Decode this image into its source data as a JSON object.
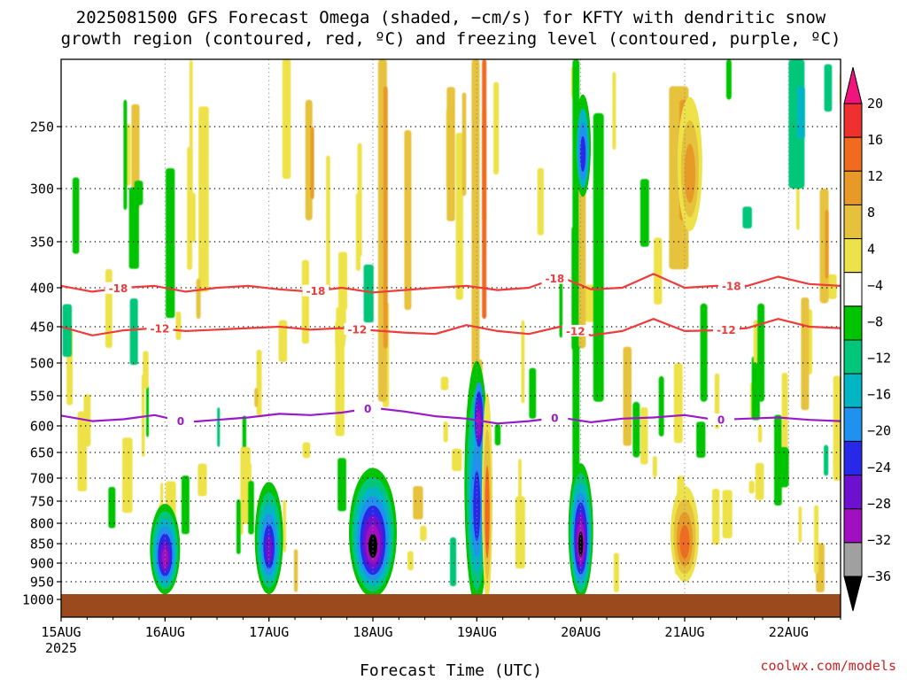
{
  "title_line1": "2025081500 GFS Forecast Omega (shaded, −cm/s) for KFTY with dendritic snow",
  "title_line2": "growth region (contoured, red, ºC) and freezing level (contoured, purple, ºC)",
  "credit": "coolwx.com/models",
  "chart_data": {
    "type": "heatmap",
    "title": "2025081500 GFS Forecast Omega (shaded, −cm/s) for KFTY with dendritic snow growth region (contoured, red, ºC) and freezing level (contoured, purple, ºC)",
    "xlabel": "Forecast Time (UTC)",
    "ylabel": "",
    "x_ticks": [
      "15AUG",
      "16AUG",
      "17AUG",
      "18AUG",
      "19AUG",
      "20AUG",
      "21AUG",
      "22AUG"
    ],
    "x_tick_year": "2025",
    "x_range_days": [
      0,
      7.5
    ],
    "y_ticks": [
      250,
      300,
      350,
      400,
      450,
      500,
      550,
      600,
      650,
      700,
      750,
      800,
      850,
      900,
      950,
      1000
    ],
    "y_range_hpa": [
      200,
      1020
    ],
    "y_scale": "pressure (inverted)",
    "grid": true,
    "ground_level_hpa": 985,
    "ground_color": "#9a4a1c",
    "colorbar": {
      "labels": [
        "20",
        "16",
        "12",
        "8",
        "4",
        "−4",
        "−8",
        "−12",
        "−16",
        "−20",
        "−24",
        "−28",
        "−32",
        "−36"
      ],
      "colors": [
        "#f0157e",
        "#ee3030",
        "#f06a20",
        "#e89a28",
        "#e6c23c",
        "#eee24a",
        "#ffffff",
        "#00c400",
        "#00c67a",
        "#00b6c4",
        "#1e92ee",
        "#2828e8",
        "#6e10d0",
        "#a010c0",
        "#a0a0a0",
        "#000000"
      ]
    },
    "series": [
      {
        "name": "dendritic snow growth region −18 ºC",
        "color": "#ee3b3b",
        "label": "-18",
        "x": [
          0,
          0.3,
          0.6,
          0.9,
          1.2,
          1.5,
          1.8,
          2.1,
          2.4,
          2.7,
          3.0,
          3.3,
          3.6,
          3.9,
          4.2,
          4.5,
          4.8,
          5.1,
          5.4,
          5.7,
          6.0,
          6.3,
          6.6,
          6.9,
          7.2,
          7.5
        ],
        "y": [
          398,
          405,
          400,
          398,
          405,
          400,
          398,
          402,
          405,
          400,
          406,
          403,
          400,
          398,
          403,
          400,
          388,
          402,
          400,
          385,
          400,
          398,
          398,
          388,
          396,
          398
        ]
      },
      {
        "name": "dendritic snow growth region −12 ºC",
        "color": "#ee3b3b",
        "label": "-12",
        "x": [
          0,
          0.3,
          0.6,
          0.9,
          1.2,
          1.5,
          1.8,
          2.1,
          2.4,
          2.7,
          3.0,
          3.3,
          3.6,
          3.9,
          4.2,
          4.5,
          4.8,
          5.1,
          5.4,
          5.7,
          6.0,
          6.3,
          6.6,
          6.9,
          7.2,
          7.5
        ],
        "y": [
          450,
          462,
          455,
          452,
          456,
          454,
          452,
          450,
          454,
          452,
          455,
          458,
          460,
          448,
          456,
          460,
          450,
          462,
          456,
          440,
          456,
          455,
          452,
          440,
          450,
          452
        ]
      },
      {
        "name": "freezing level 0 ºC",
        "color": "#9a1ac8",
        "label": "0",
        "x": [
          0,
          0.3,
          0.6,
          0.9,
          1.2,
          1.5,
          1.8,
          2.1,
          2.4,
          2.7,
          3.0,
          3.3,
          3.6,
          3.9,
          4.2,
          4.5,
          4.8,
          5.1,
          5.4,
          5.7,
          6.0,
          6.3,
          6.6,
          6.9,
          7.2,
          7.5
        ],
        "y": [
          583,
          592,
          589,
          582,
          594,
          590,
          586,
          580,
          582,
          578,
          570,
          576,
          584,
          588,
          596,
          592,
          586,
          594,
          588,
          586,
          582,
          590,
          588,
          586,
          590,
          592
        ]
      }
    ],
    "omega_features": [
      {
        "x_day": 1.0,
        "top_hpa": 740,
        "bottom_hpa": 960,
        "peak": -32
      },
      {
        "x_day": 2.0,
        "top_hpa": 690,
        "bottom_hpa": 960,
        "peak": -28
      },
      {
        "x_day": 3.0,
        "top_hpa": 660,
        "bottom_hpa": 960,
        "peak": -36
      },
      {
        "x_day": 4.0,
        "top_hpa": 480,
        "bottom_hpa": 960,
        "peak": -28
      },
      {
        "x_day": 5.0,
        "top_hpa": 650,
        "bottom_hpa": 960,
        "peak": -36
      },
      {
        "x_day": 5.05,
        "top_hpa": 200,
        "bottom_hpa": 300,
        "peak": -20
      },
      {
        "x_day": 6.0,
        "top_hpa": 200,
        "bottom_hpa": 350,
        "peak": 12
      },
      {
        "x_day": 6.0,
        "top_hpa": 700,
        "bottom_hpa": 930,
        "peak": 16
      }
    ]
  }
}
